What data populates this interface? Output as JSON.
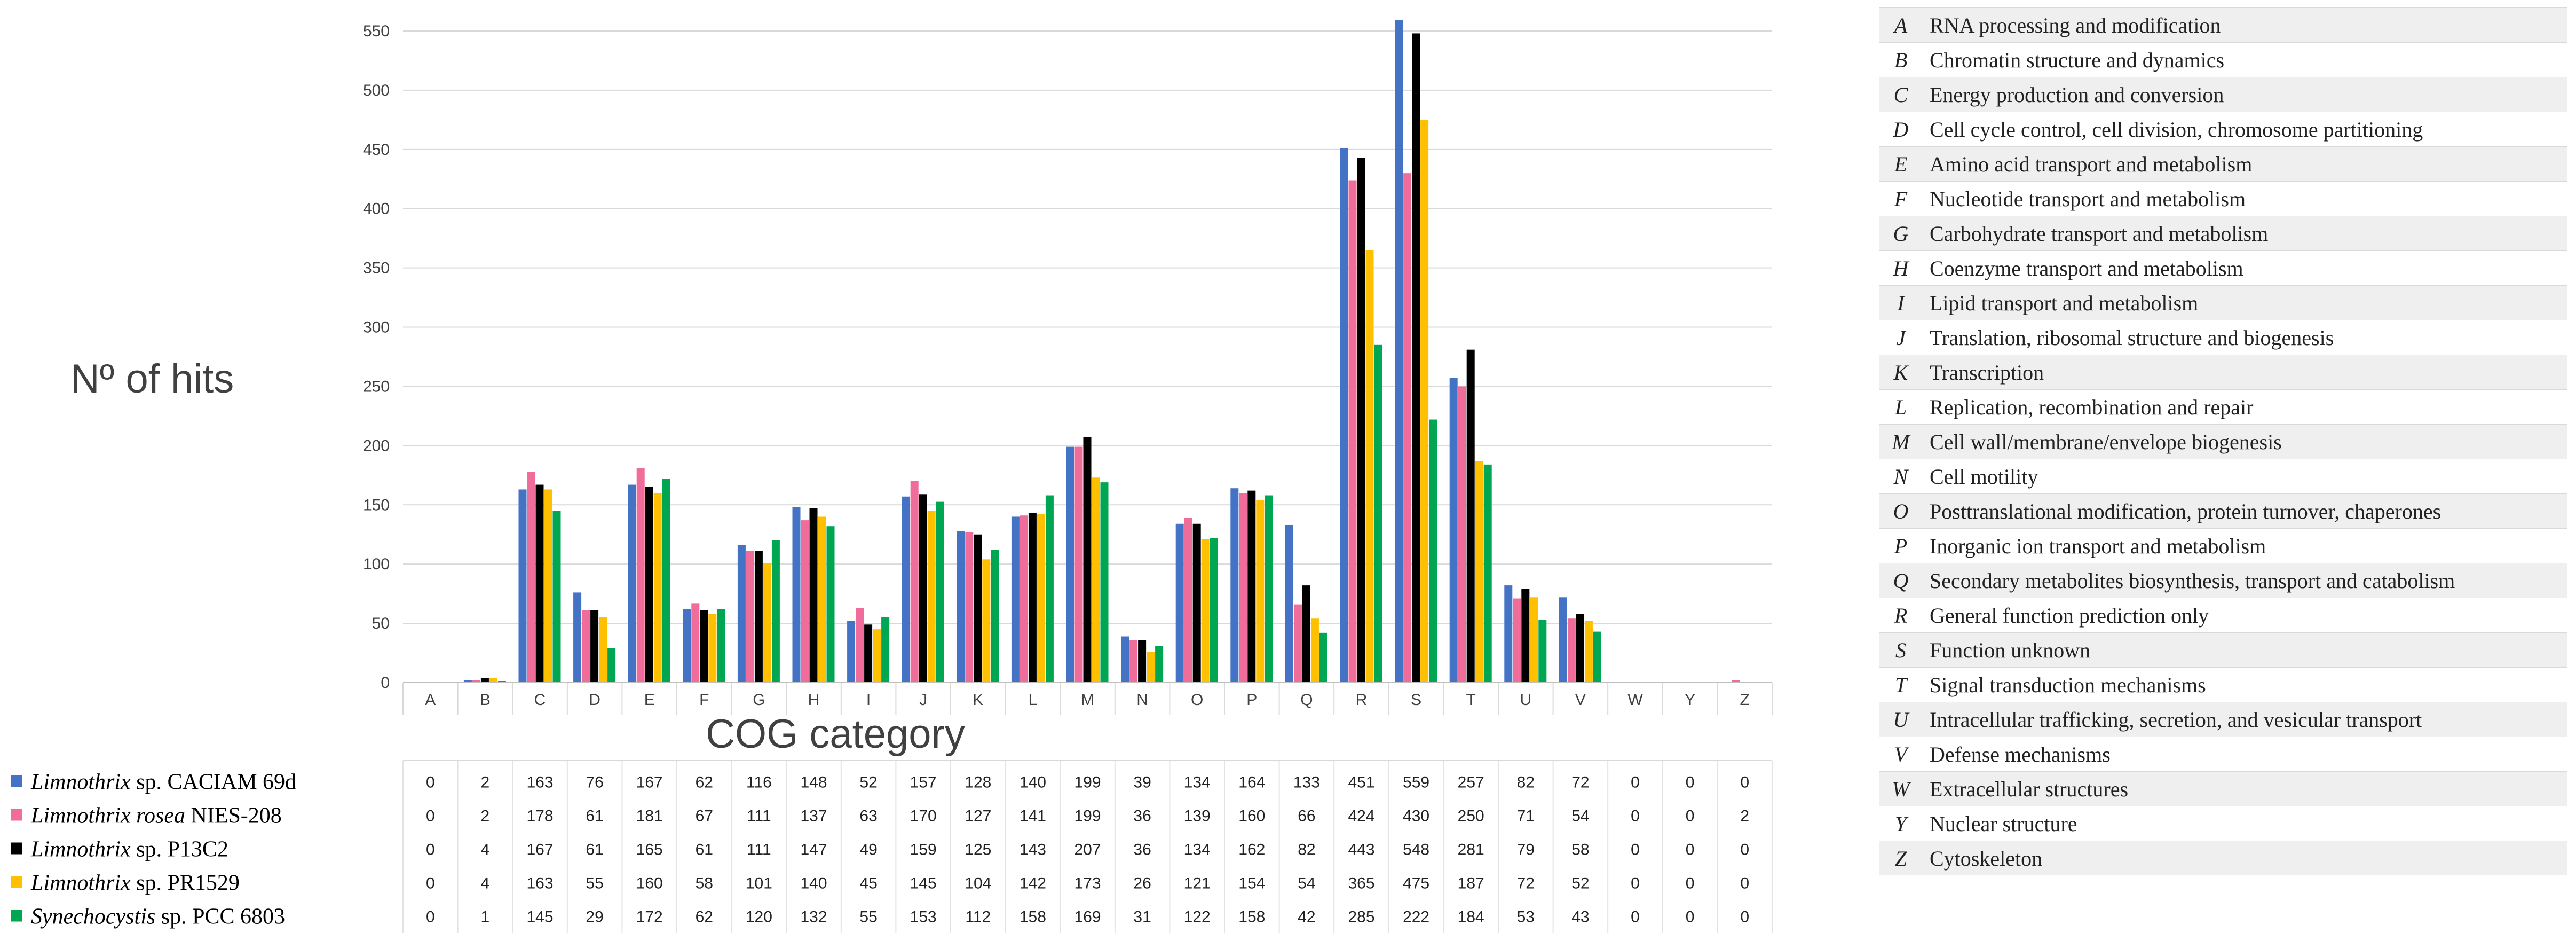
{
  "chart_data": {
    "type": "bar",
    "xlabel": "COG category",
    "ylabel": "Nº of hits",
    "ylim": [
      0,
      550
    ],
    "yticks": [
      0,
      50,
      100,
      150,
      200,
      250,
      300,
      350,
      400,
      450,
      500,
      550
    ],
    "grid": true,
    "categories": [
      "A",
      "B",
      "C",
      "D",
      "E",
      "F",
      "G",
      "H",
      "I",
      "J",
      "K",
      "L",
      "M",
      "N",
      "O",
      "P",
      "Q",
      "R",
      "S",
      "T",
      "U",
      "V",
      "W",
      "Y",
      "Z"
    ],
    "series": [
      {
        "name": "Limnothrix sp. CACIAM 69d",
        "name_italic": "Limnothrix",
        "name_rest": " sp. CACIAM 69d",
        "color": "#4472C4",
        "values": [
          0,
          2,
          163,
          76,
          167,
          62,
          116,
          148,
          52,
          157,
          128,
          140,
          199,
          39,
          134,
          164,
          133,
          451,
          559,
          257,
          82,
          72,
          0,
          0,
          0
        ]
      },
      {
        "name": "Limnothrix rosea NIES-208",
        "name_italic": "Limnothrix rosea",
        "name_rest": " NIES-208",
        "color": "#F06C9B",
        "values": [
          0,
          2,
          178,
          61,
          181,
          67,
          111,
          137,
          63,
          170,
          127,
          141,
          199,
          36,
          139,
          160,
          66,
          424,
          430,
          250,
          71,
          54,
          0,
          0,
          2
        ]
      },
      {
        "name": "Limnothrix sp. P13C2",
        "name_italic": "Limnothrix",
        "name_rest": " sp. P13C2",
        "color": "#000000",
        "values": [
          0,
          4,
          167,
          61,
          165,
          61,
          111,
          147,
          49,
          159,
          125,
          143,
          207,
          36,
          134,
          162,
          82,
          443,
          548,
          281,
          79,
          58,
          0,
          0,
          0
        ]
      },
      {
        "name": "Limnothrix sp. PR1529",
        "name_italic": "Limnothrix",
        "name_rest": " sp. PR1529",
        "color": "#FFC000",
        "values": [
          0,
          4,
          163,
          55,
          160,
          58,
          101,
          140,
          45,
          145,
          104,
          142,
          173,
          26,
          121,
          154,
          54,
          365,
          475,
          187,
          72,
          52,
          0,
          0,
          0
        ]
      },
      {
        "name": "Synechocystis sp. PCC 6803",
        "name_italic": "Synechocystis",
        "name_rest": " sp. PCC 6803",
        "color": "#00A651",
        "values": [
          0,
          1,
          145,
          29,
          172,
          62,
          120,
          132,
          55,
          153,
          112,
          158,
          169,
          31,
          122,
          158,
          42,
          285,
          222,
          184,
          53,
          43,
          0,
          0,
          0
        ]
      }
    ]
  },
  "cog_legend": [
    {
      "code": "A",
      "description": "RNA processing and modification"
    },
    {
      "code": "B",
      "description": "Chromatin structure and dynamics"
    },
    {
      "code": "C",
      "description": "Energy production and conversion"
    },
    {
      "code": "D",
      "description": "Cell cycle control, cell division, chromosome partitioning"
    },
    {
      "code": "E",
      "description": "Amino acid transport and metabolism"
    },
    {
      "code": "F",
      "description": "Nucleotide transport and metabolism"
    },
    {
      "code": "G",
      "description": "Carbohydrate transport and metabolism"
    },
    {
      "code": "H",
      "description": "Coenzyme transport and metabolism"
    },
    {
      "code": "I",
      "description": "Lipid transport and metabolism"
    },
    {
      "code": "J",
      "description": "Translation, ribosomal structure and biogenesis"
    },
    {
      "code": "K",
      "description": "Transcription"
    },
    {
      "code": "L",
      "description": "Replication, recombination and repair"
    },
    {
      "code": "M",
      "description": "Cell wall/membrane/envelope biogenesis"
    },
    {
      "code": "N",
      "description": "Cell motility"
    },
    {
      "code": "O",
      "description": "Posttranslational modification, protein turnover, chaperones"
    },
    {
      "code": "P",
      "description": "Inorganic ion transport and metabolism"
    },
    {
      "code": "Q",
      "description": "Secondary metabolites biosynthesis, transport and catabolism"
    },
    {
      "code": "R",
      "description": "General function prediction only"
    },
    {
      "code": "S",
      "description": "Function unknown"
    },
    {
      "code": "T",
      "description": "Signal transduction mechanisms"
    },
    {
      "code": "U",
      "description": "Intracellular trafficking, secretion, and vesicular transport"
    },
    {
      "code": "V",
      "description": "Defense mechanisms"
    },
    {
      "code": "W",
      "description": "Extracellular structures"
    },
    {
      "code": "Y",
      "description": "Nuclear structure"
    },
    {
      "code": "Z",
      "description": "Cytoskeleton"
    }
  ]
}
